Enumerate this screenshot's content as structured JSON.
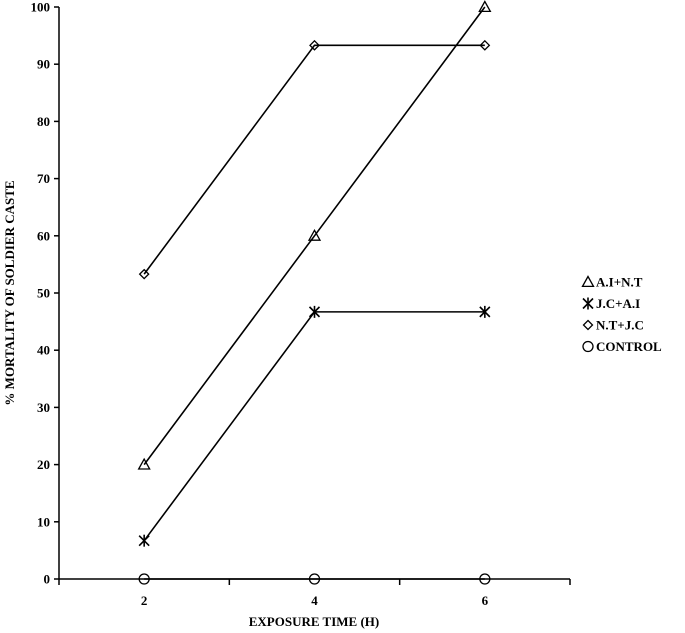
{
  "chart_data": {
    "type": "line",
    "title": "",
    "xlabel": "EXPOSURE TIME (H)",
    "ylabel": "% MORTALITY OF SOLDIER CASTE",
    "x": [
      2,
      4,
      6
    ],
    "xlim": [
      1,
      7
    ],
    "ylim": [
      0,
      100
    ],
    "yticks": [
      0,
      10,
      20,
      30,
      40,
      50,
      60,
      70,
      80,
      90,
      100
    ],
    "xticks": [
      2,
      4,
      6
    ],
    "grid": false,
    "legend_position": "right",
    "series": [
      {
        "name": "A.I+N.T",
        "marker": "triangle",
        "values": [
          20,
          60,
          100
        ]
      },
      {
        "name": "J.C+A.I",
        "marker": "star",
        "values": [
          6.7,
          46.7,
          46.7
        ]
      },
      {
        "name": "N.T+J.C",
        "marker": "diamond",
        "values": [
          53.3,
          93.3,
          93.3
        ]
      },
      {
        "name": "CONTROL",
        "marker": "circle",
        "values": [
          0,
          0,
          0
        ]
      }
    ]
  }
}
